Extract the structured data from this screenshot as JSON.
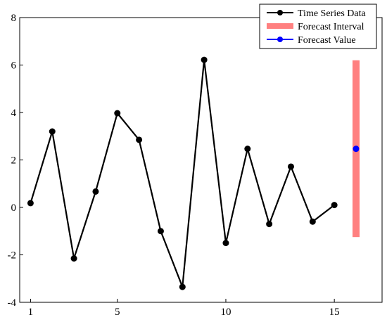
{
  "chart_data": {
    "type": "line",
    "title": "",
    "xlabel": "",
    "ylabel": "",
    "xlim": [
      0.5,
      17.2
    ],
    "ylim": [
      -4,
      8
    ],
    "xticks": [
      1,
      5,
      10,
      15
    ],
    "xtick_labels": [
      "1",
      "5",
      "10",
      "15"
    ],
    "yticks": [
      -4,
      -2,
      0,
      2,
      4,
      6,
      8
    ],
    "ytick_labels": [
      "-4",
      "-2",
      "0",
      "2",
      "4",
      "6",
      "8"
    ],
    "grid": false,
    "legend_position": "top-right",
    "series": [
      {
        "name": "Time Series Data",
        "kind": "line-with-markers",
        "color": "#000000",
        "x": [
          1,
          2,
          3,
          4,
          5,
          6,
          7,
          8,
          9,
          10,
          11,
          12,
          13,
          14,
          15
        ],
        "y": [
          0.18,
          3.2,
          -2.15,
          0.67,
          3.97,
          2.85,
          -1.0,
          -3.35,
          6.22,
          -1.5,
          2.47,
          -0.7,
          1.72,
          -0.6,
          0.1
        ]
      },
      {
        "name": "Forecast Interval",
        "kind": "interval",
        "color": "#ff8080",
        "x": 16,
        "low": -1.25,
        "high": 6.2
      },
      {
        "name": "Forecast Value",
        "kind": "point",
        "color": "#0000ff",
        "x": 16,
        "y": 2.47
      }
    ],
    "legend": [
      {
        "label": "Time Series Data",
        "style": "line-marker",
        "color": "#000000"
      },
      {
        "label": "Forecast Interval",
        "style": "band",
        "color": "#ff8080"
      },
      {
        "label": "Forecast Value",
        "style": "line-marker",
        "color": "#0000ff"
      }
    ]
  }
}
